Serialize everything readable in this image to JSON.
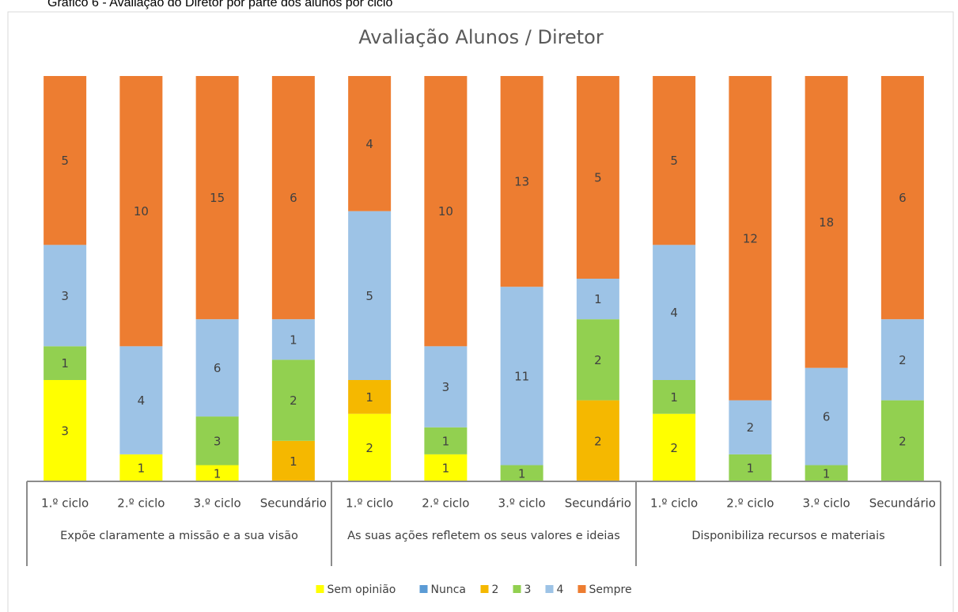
{
  "caption": "Gráfico 6 - Avaliação do Diretor por parte dos alunos por ciclo",
  "chart_data": {
    "type": "stacked_bar_100",
    "title": "Avaliação Alunos / Diretor",
    "categories": [
      "1.º ciclo",
      "2.º ciclo",
      "3.º ciclo",
      "Secundário",
      "1.º ciclo",
      "2.º ciclo",
      "3.º ciclo",
      "Secundário",
      "1.º ciclo",
      "2.º ciclo",
      "3.º ciclo",
      "Secundário"
    ],
    "groups": [
      "Expõe claramente a missão e a sua visão",
      "As suas ações refletem os seus valores e ideias",
      "Disponibiliza recursos e materiais"
    ],
    "series": [
      {
        "name": "Sem opinião",
        "color": "#ffff00",
        "values": [
          3,
          1,
          1,
          null,
          2,
          1,
          null,
          null,
          2,
          null,
          null,
          null
        ]
      },
      {
        "name": "Nunca",
        "color": "#5b9bd5",
        "values": [
          null,
          null,
          null,
          null,
          null,
          null,
          null,
          null,
          null,
          null,
          null,
          null
        ]
      },
      {
        "name": "2",
        "color": "#f5b800",
        "values": [
          null,
          null,
          null,
          1,
          1,
          null,
          null,
          2,
          null,
          null,
          null,
          null
        ]
      },
      {
        "name": "3",
        "color": "#92d050",
        "values": [
          1,
          null,
          3,
          2,
          null,
          1,
          1,
          2,
          1,
          1,
          1,
          2
        ]
      },
      {
        "name": "4",
        "color": "#9dc3e6",
        "values": [
          3,
          4,
          6,
          1,
          5,
          3,
          11,
          1,
          4,
          2,
          6,
          2
        ]
      },
      {
        "name": "Sempre",
        "color": "#ed7d31",
        "values": [
          5,
          10,
          15,
          6,
          4,
          10,
          13,
          5,
          5,
          12,
          18,
          6
        ]
      }
    ],
    "legend": "bottom"
  }
}
